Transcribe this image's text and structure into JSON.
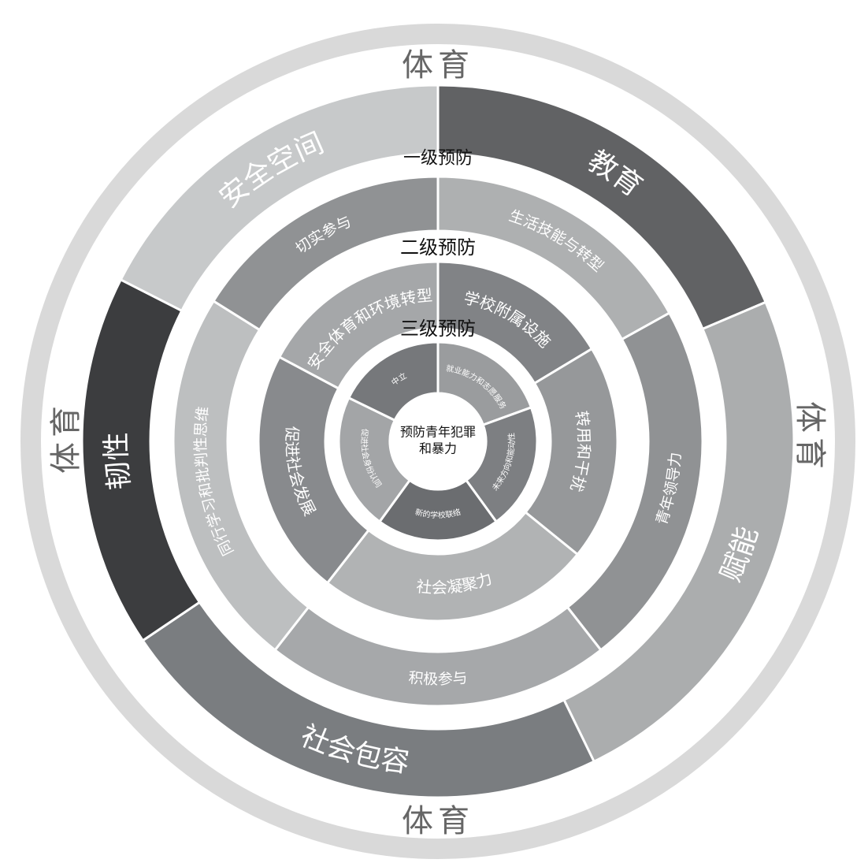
{
  "outer_ring": {
    "labels": [
      "体育",
      "体育",
      "体育",
      "体育"
    ],
    "color": "#d9d9d9"
  },
  "level_labels": {
    "primary": "一级预防",
    "secondary": "二级预防",
    "tertiary": "三级预防"
  },
  "center": {
    "line1": "预防青年犯罪",
    "line2": "和暴力"
  },
  "ring1": [
    {
      "label": "教育",
      "color": "#616264"
    },
    {
      "label": "赋能",
      "color": "#abadae"
    },
    {
      "label": "社会包容",
      "color": "#7a7d80"
    },
    {
      "label": "韧性",
      "color": "#3c3d3f"
    },
    {
      "label": "安全空间",
      "color": "#c7c9ca"
    }
  ],
  "ring2": [
    {
      "label": "生活技能与转型",
      "color": "#aeb0b1"
    },
    {
      "label": "青年领导力",
      "color": "#909294"
    },
    {
      "label": "积极参与",
      "color": "#a6a8aa"
    },
    {
      "label": "同行学习和批判性思维",
      "color": "#bdbfc0"
    },
    {
      "label": "切实参与",
      "color": "#909294"
    }
  ],
  "ring3": [
    {
      "label": "学校附属设施",
      "color": "#818386"
    },
    {
      "label": "转用和干扰",
      "color": "#96989a"
    },
    {
      "label": "社会凝聚力",
      "color": "#b1b3b4"
    },
    {
      "label": "促进社会发展",
      "color": "#888a8d"
    },
    {
      "label": "安全体育和环境转型",
      "color": "#a5a7a9"
    }
  ],
  "ring4": [
    {
      "label": "就业能力和志愿服务",
      "color": "#9a9c9e"
    },
    {
      "label": "未来方向和能动性",
      "color": "#7d7f82"
    },
    {
      "label": "新的学校联络",
      "color": "#6b6d70"
    },
    {
      "label": "促进社会身份认同",
      "color": "#a3a5a7"
    },
    {
      "label": "中立",
      "color": "#76787b"
    }
  ]
}
